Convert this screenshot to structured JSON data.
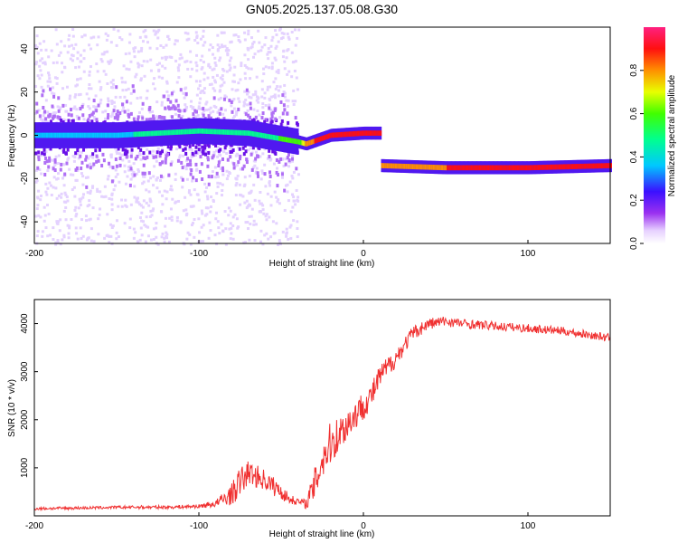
{
  "title": "GN05.2025.137.05.08.G30",
  "chart_data": [
    {
      "type": "heatmap",
      "xlabel": "Height of straight line (km)",
      "ylabel": "Frequency (Hz)",
      "xlim": [
        -200,
        150
      ],
      "ylim": [
        -50,
        50
      ],
      "x_ticks": [
        -200,
        -100,
        0,
        100
      ],
      "y_ticks": [
        -40,
        -20,
        0,
        20,
        40
      ],
      "colorbar": {
        "label": "Normalized spectral amplitude",
        "range": [
          0,
          1
        ],
        "ticks": [
          0.0,
          0.2,
          0.4,
          0.6,
          0.8
        ],
        "colormap": [
          "#ffffff",
          "#d9b8ff",
          "#8a2be2",
          "#3b1bff",
          "#00e5ff",
          "#00ff40",
          "#ffff00",
          "#ff8000",
          "#ff0000",
          "#ff1a66"
        ]
      },
      "ridge": [
        {
          "x": -200,
          "f": 0,
          "amp": 0.3
        },
        {
          "x": -150,
          "f": 0,
          "amp": 0.35
        },
        {
          "x": -100,
          "f": 2,
          "amp": 0.4
        },
        {
          "x": -70,
          "f": 1,
          "amp": 0.45
        },
        {
          "x": -40,
          "f": -3,
          "amp": 0.5
        },
        {
          "x": -35,
          "f": -4,
          "amp": 0.75
        },
        {
          "x": -20,
          "f": 0,
          "amp": 0.9
        },
        {
          "x": 0,
          "f": 1,
          "amp": 0.9
        },
        {
          "x": 10,
          "f": 1,
          "amp": 0.85
        },
        {
          "x": 10,
          "f": -14,
          "amp": 0.8
        },
        {
          "x": 50,
          "f": -15,
          "amp": 0.8
        },
        {
          "x": 100,
          "f": -15,
          "amp": 0.85
        },
        {
          "x": 150,
          "f": -14,
          "amp": 0.9
        }
      ]
    },
    {
      "type": "line",
      "xlabel": "Height of straight line (km)",
      "ylabel": "SNR (10 * v/v)",
      "xlim": [
        -200,
        150
      ],
      "ylim": [
        0,
        4500
      ],
      "x_ticks": [
        -200,
        -100,
        0,
        100
      ],
      "y_ticks": [
        1000,
        2000,
        3000,
        4000
      ],
      "series": [
        {
          "color": "#f03030",
          "x": [
            -200,
            -180,
            -160,
            -140,
            -120,
            -100,
            -90,
            -80,
            -75,
            -70,
            -60,
            -50,
            -45,
            -40,
            -35,
            -30,
            -25,
            -20,
            -15,
            -10,
            -5,
            0,
            5,
            10,
            15,
            20,
            30,
            40,
            50,
            60,
            80,
            100,
            120,
            150
          ],
          "y": [
            150,
            160,
            170,
            180,
            180,
            200,
            250,
            450,
            700,
            900,
            750,
            500,
            350,
            300,
            250,
            600,
            1200,
            1500,
            1700,
            1900,
            2100,
            2300,
            2500,
            2900,
            3100,
            3300,
            3800,
            4000,
            4050,
            4000,
            3950,
            3900,
            3850,
            3700
          ],
          "spread": [
            60,
            60,
            60,
            70,
            70,
            80,
            150,
            450,
            650,
            500,
            450,
            350,
            200,
            150,
            200,
            700,
            1000,
            900,
            800,
            700,
            650,
            600,
            550,
            500,
            450,
            400,
            300,
            250,
            220,
            200,
            180,
            180,
            170,
            170
          ]
        }
      ]
    }
  ]
}
